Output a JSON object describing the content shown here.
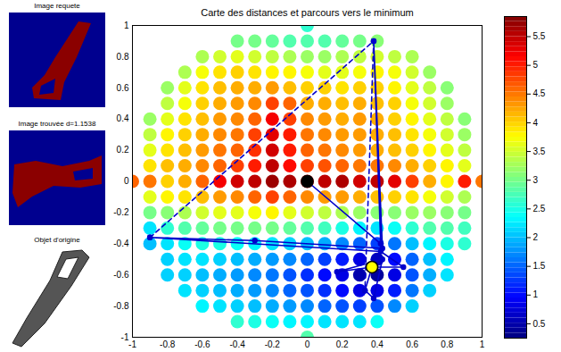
{
  "chart_data": {
    "type": "scatter",
    "title": "Carte des distances et parcours vers le minimum",
    "panels": [
      "Image requete",
      "Image trouvée d=1.1538",
      "Objet d'origine"
    ],
    "xlim": [
      -1,
      1
    ],
    "ylim": [
      -1,
      1
    ],
    "xticks": [
      -1,
      -0.8,
      -0.6,
      -0.4,
      -0.2,
      0,
      0.2,
      0.4,
      0.6,
      0.8,
      1
    ],
    "yticks": [
      -1,
      -0.8,
      -0.6,
      -0.4,
      -0.2,
      0,
      0.2,
      0.4,
      0.6,
      0.8,
      1
    ],
    "map": {
      "x": [
        -1,
        -0.9,
        -0.8,
        -0.7,
        -0.6,
        -0.5,
        -0.4,
        -0.3,
        -0.2,
        -0.1,
        0,
        0.1,
        0.2,
        0.3,
        0.4,
        0.5,
        0.6,
        0.7,
        0.8,
        0.9,
        1
      ],
      "y": [
        1,
        0.9,
        0.8,
        0.7,
        0.6,
        0.5,
        0.4,
        0.3,
        0.2,
        0.1,
        0,
        -0.1,
        -0.2,
        -0.3,
        -0.4,
        -0.5,
        -0.6,
        -0.7,
        -0.8,
        -0.9,
        -1
      ],
      "values": [
        [
          null,
          null,
          null,
          null,
          null,
          null,
          null,
          null,
          null,
          null,
          2.6,
          null,
          null,
          null,
          null,
          null,
          null,
          null,
          null,
          null,
          null
        ],
        [
          null,
          null,
          null,
          null,
          null,
          null,
          3.0,
          3.0,
          2.9,
          2.8,
          2.8,
          2.8,
          2.9,
          3.0,
          3.1,
          null,
          null,
          null,
          null,
          null,
          null
        ],
        [
          null,
          null,
          null,
          null,
          3.3,
          3.5,
          3.6,
          3.5,
          3.4,
          3.3,
          3.2,
          3.2,
          3.3,
          3.4,
          3.5,
          3.4,
          3.3,
          null,
          null,
          null,
          null
        ],
        [
          null,
          null,
          null,
          3.3,
          3.7,
          3.9,
          4.0,
          3.9,
          3.8,
          3.8,
          3.7,
          3.6,
          3.6,
          3.7,
          3.8,
          3.7,
          3.5,
          3.2,
          null,
          null,
          null
        ],
        [
          null,
          null,
          3.2,
          3.6,
          3.9,
          4.1,
          4.2,
          4.2,
          4.3,
          4.1,
          4.0,
          4.0,
          3.9,
          4.0,
          4.0,
          3.8,
          3.6,
          3.4,
          3.1,
          null,
          null
        ],
        [
          null,
          null,
          3.4,
          3.7,
          4.0,
          4.2,
          4.3,
          4.4,
          4.8,
          4.6,
          4.2,
          4.2,
          4.1,
          4.2,
          4.1,
          4.0,
          3.7,
          3.5,
          3.2,
          null,
          null
        ],
        [
          null,
          3.2,
          3.6,
          3.9,
          4.1,
          4.3,
          4.4,
          4.6,
          5.2,
          4.8,
          4.4,
          4.3,
          4.2,
          4.3,
          4.2,
          4.0,
          3.8,
          3.6,
          3.4,
          3.1,
          null
        ],
        [
          null,
          3.4,
          3.8,
          4.0,
          4.2,
          4.4,
          4.5,
          4.8,
          5.3,
          5.0,
          4.5,
          4.4,
          4.3,
          4.3,
          4.2,
          4.1,
          3.9,
          3.7,
          3.5,
          3.2,
          null
        ],
        [
          null,
          3.6,
          3.9,
          4.1,
          4.3,
          4.5,
          4.6,
          4.9,
          5.4,
          5.0,
          4.6,
          4.5,
          4.4,
          4.3,
          4.2,
          4.1,
          4.0,
          3.8,
          3.6,
          3.4,
          null
        ],
        [
          null,
          3.9,
          4.1,
          4.2,
          4.4,
          4.6,
          4.8,
          5.0,
          5.5,
          5.1,
          4.8,
          4.7,
          4.6,
          4.5,
          4.5,
          4.4,
          4.2,
          4.0,
          3.8,
          3.6,
          null
        ],
        [
          4.6,
          4.5,
          4.0,
          4.2,
          4.6,
          5.2,
          5.4,
          5.5,
          5.7,
          5.6,
          5.5,
          5.5,
          5.6,
          5.4,
          5.5,
          5.3,
          4.8,
          4.2,
          3.8,
          5.0,
          4.5
        ],
        [
          null,
          3.6,
          3.8,
          3.9,
          4.1,
          4.3,
          4.4,
          4.6,
          4.8,
          4.6,
          4.4,
          4.3,
          4.3,
          4.2,
          4.1,
          4.0,
          3.9,
          3.7,
          3.5,
          3.3,
          null
        ],
        [
          null,
          3.0,
          3.1,
          3.3,
          3.5,
          3.6,
          3.6,
          3.7,
          3.8,
          3.6,
          3.5,
          3.4,
          3.3,
          3.2,
          3.1,
          3.1,
          3.2,
          3.2,
          3.1,
          3.0,
          null
        ],
        [
          null,
          2.2,
          2.6,
          2.8,
          2.9,
          3.0,
          3.0,
          3.0,
          3.0,
          2.9,
          2.8,
          2.7,
          2.5,
          2.3,
          2.2,
          2.4,
          2.6,
          2.8,
          2.8,
          2.7,
          null
        ],
        [
          null,
          2.0,
          2.2,
          2.4,
          2.5,
          2.5,
          2.4,
          2.3,
          2.2,
          2.1,
          2.0,
          1.9,
          1.7,
          1.5,
          1.3,
          1.6,
          2.0,
          2.3,
          2.5,
          2.6,
          null
        ],
        [
          null,
          null,
          2.1,
          2.2,
          2.2,
          2.1,
          2.0,
          1.9,
          1.8,
          1.7,
          1.5,
          1.3,
          1.1,
          0.8,
          0.6,
          1.0,
          1.5,
          2.0,
          2.3,
          null,
          null
        ],
        [
          null,
          null,
          2.1,
          2.1,
          2.0,
          1.9,
          1.8,
          1.7,
          1.6,
          1.4,
          1.2,
          1.0,
          0.8,
          0.5,
          0.4,
          0.8,
          1.4,
          1.9,
          2.2,
          null,
          null
        ],
        [
          null,
          null,
          null,
          2.2,
          2.1,
          2.0,
          1.9,
          1.8,
          1.7,
          1.5,
          1.4,
          1.2,
          1.0,
          0.8,
          0.8,
          1.1,
          1.6,
          2.1,
          null,
          null,
          null
        ],
        [
          null,
          null,
          null,
          null,
          2.3,
          2.2,
          2.1,
          2.0,
          1.9,
          1.8,
          1.7,
          1.5,
          1.4,
          1.3,
          1.4,
          1.7,
          2.1,
          null,
          null,
          null,
          null
        ],
        [
          null,
          null,
          null,
          null,
          null,
          null,
          2.6,
          2.5,
          2.4,
          2.3,
          2.3,
          2.2,
          2.2,
          2.2,
          2.4,
          null,
          null,
          null,
          null,
          null,
          null
        ],
        [
          null,
          null,
          null,
          null,
          null,
          null,
          null,
          null,
          null,
          null,
          2.8,
          null,
          null,
          null,
          null,
          null,
          null,
          null,
          null,
          null,
          null
        ]
      ]
    },
    "color_range": [
      0.25,
      5.85
    ],
    "color_ticks": [
      0.5,
      1,
      1.5,
      2,
      2.5,
      3,
      3.5,
      4,
      4.5,
      5,
      5.5
    ],
    "series": [
      {
        "type": "line",
        "line_style": "solid",
        "marker": "circle",
        "color": "#0000cc",
        "x": [
          0,
          0.42,
          0.38,
          0.43,
          -0.3,
          -0.9,
          0.42,
          0.55,
          0.37,
          0.17,
          0.43,
          0.38,
          0.33,
          0.37
        ],
        "y": [
          0,
          -0.4,
          0.9,
          -0.43,
          -0.38,
          -0.36,
          -0.45,
          -0.55,
          -0.55,
          -0.58,
          -0.5,
          -0.75,
          -0.7,
          -0.55
        ]
      },
      {
        "type": "line",
        "line_style": "dashed",
        "marker": "circle",
        "color": "#0000cc",
        "x": [
          -0.9,
          0.38,
          0.33
        ],
        "y": [
          -0.36,
          0.9,
          -0.7
        ]
      },
      {
        "type": "scatter",
        "marker": "circle",
        "color": "#000000",
        "x": [
          0
        ],
        "y": [
          0
        ]
      },
      {
        "type": "scatter",
        "marker": "circle",
        "color": "#ffff00",
        "x": [
          0.37
        ],
        "y": [
          -0.55
        ]
      }
    ]
  }
}
